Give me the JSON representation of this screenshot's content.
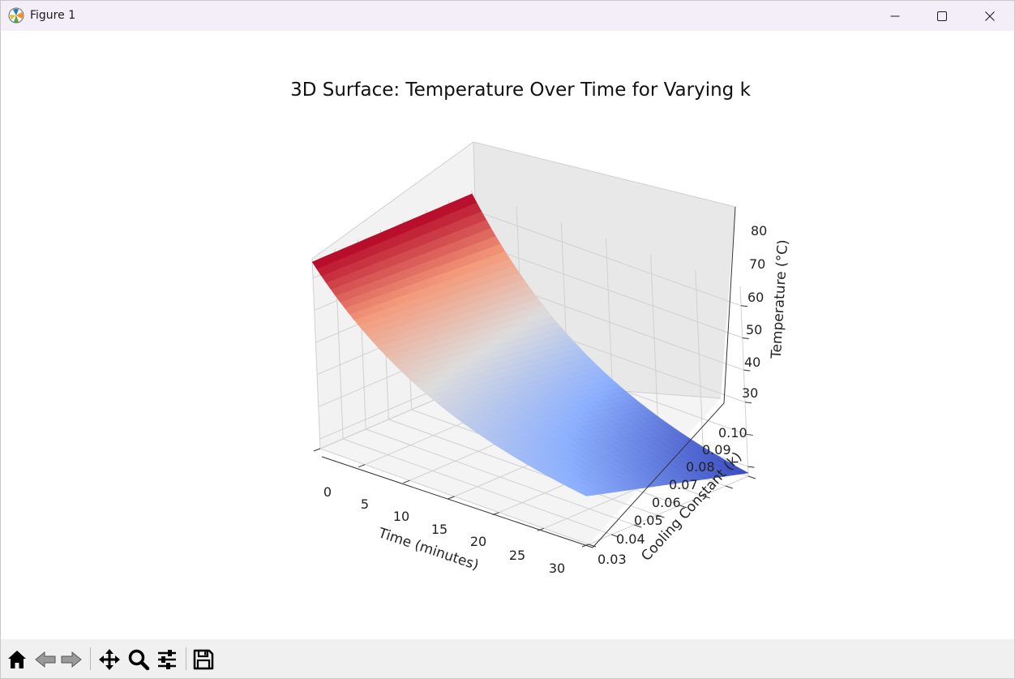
{
  "window": {
    "title": "Figure 1",
    "app_icon": "matplotlib-icon",
    "controls": {
      "minimize": "minimize-icon",
      "maximize": "maximize-icon",
      "close": "close-icon"
    }
  },
  "toolbar": {
    "buttons": [
      {
        "name": "home",
        "icon": "home-icon"
      },
      {
        "name": "back",
        "icon": "back-arrow-icon"
      },
      {
        "name": "forward",
        "icon": "forward-arrow-icon"
      },
      {
        "name": "pan",
        "icon": "pan-icon"
      },
      {
        "name": "zoom",
        "icon": "zoom-icon"
      },
      {
        "name": "configure-subplots",
        "icon": "sliders-icon"
      },
      {
        "name": "save",
        "icon": "save-icon"
      }
    ]
  },
  "colors": {
    "surface_high": "#b40426",
    "surface_mid": "#dddcdc",
    "surface_low": "#3b4cc0"
  },
  "chart_data": {
    "type": "surface",
    "title": "3D Surface: Temperature Over Time for Varying k",
    "xlabel": "Time (minutes)",
    "ylabel": "Cooling Constant (k)",
    "zlabel": "Temperature (°C)",
    "xlim": [
      0,
      30
    ],
    "ylim": [
      0.03,
      0.1
    ],
    "zlim": [
      27,
      86
    ],
    "x_ticks": [
      "0",
      "5",
      "10",
      "15",
      "20",
      "25",
      "30"
    ],
    "y_ticks": [
      "0.03",
      "0.04",
      "0.05",
      "0.06",
      "0.07",
      "0.08",
      "0.09",
      "0.10"
    ],
    "z_ticks": [
      "30",
      "40",
      "50",
      "60",
      "70",
      "80"
    ],
    "colormap": "coolwarm",
    "grid": true,
    "surface_samples": [
      {
        "time": 0,
        "k": 0.03,
        "temperature": 85
      },
      {
        "time": 0,
        "k": 0.1,
        "temperature": 85
      },
      {
        "time": 30,
        "k": 0.03,
        "temperature": 42
      },
      {
        "time": 30,
        "k": 0.1,
        "temperature": 28
      }
    ]
  }
}
